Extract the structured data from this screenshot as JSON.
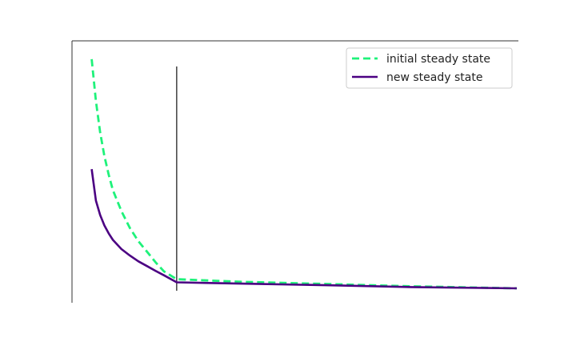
{
  "chart_data": {
    "type": "line",
    "title": "",
    "xlabel": "",
    "ylabel": "",
    "xlim": [
      0,
      10.5
    ],
    "ylim": [
      0,
      10
    ],
    "grid": false,
    "legend_position": "top-right",
    "vline": {
      "x": 2.5
    },
    "series": [
      {
        "name": "initial steady state",
        "style": "dashed",
        "color": "#1ef27a",
        "points": [
          [
            0.5,
            9.3
          ],
          [
            0.6,
            7.7
          ],
          [
            0.7,
            6.5
          ],
          [
            0.8,
            5.6
          ],
          [
            0.9,
            4.9
          ],
          [
            1.0,
            4.3
          ],
          [
            1.2,
            3.5
          ],
          [
            1.4,
            2.85
          ],
          [
            1.6,
            2.35
          ],
          [
            1.8,
            1.95
          ],
          [
            2.0,
            1.55
          ],
          [
            2.2,
            1.2
          ],
          [
            2.5,
            0.9
          ],
          [
            4,
            0.8
          ],
          [
            6,
            0.72
          ],
          [
            8,
            0.63
          ],
          [
            10.5,
            0.55
          ]
        ]
      },
      {
        "name": "new steady state",
        "style": "solid",
        "color": "#4b0082",
        "points": [
          [
            0.5,
            5.1
          ],
          [
            0.6,
            3.9
          ],
          [
            0.7,
            3.35
          ],
          [
            0.8,
            2.95
          ],
          [
            0.9,
            2.65
          ],
          [
            1.0,
            2.4
          ],
          [
            1.2,
            2.05
          ],
          [
            1.4,
            1.8
          ],
          [
            1.6,
            1.58
          ],
          [
            1.8,
            1.4
          ],
          [
            2.0,
            1.22
          ],
          [
            2.2,
            1.05
          ],
          [
            2.5,
            0.78
          ],
          [
            4,
            0.73
          ],
          [
            6,
            0.67
          ],
          [
            8,
            0.6
          ],
          [
            10.5,
            0.55
          ]
        ]
      }
    ]
  }
}
